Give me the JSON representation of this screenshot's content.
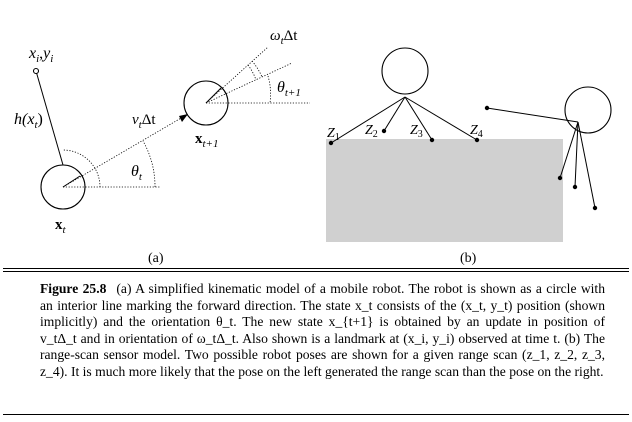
{
  "panel_a": {
    "landmark_label": "x",
    "landmark_sep": ",",
    "landmark_label2": "y",
    "landmark_sub": "i",
    "h_label": "h(x",
    "h_sub": "t",
    "h_close": ")",
    "x_t": "x",
    "x_t_sub": "t",
    "v_label": "v",
    "v_sub": "t",
    "v_delta": "Δt",
    "theta": "θ",
    "theta_sub": "t",
    "omega": "ω",
    "omega_sub": "t",
    "omega_delta": "Δt",
    "theta_next_sub": "t+1",
    "x_next_sub": "t+1",
    "caption": "(a)"
  },
  "panel_b": {
    "z_labels": [
      "Z",
      "Z",
      "Z",
      "Z"
    ],
    "z_subs": [
      "1",
      "2",
      "3",
      "4"
    ],
    "caption": "(b)"
  },
  "caption": {
    "label": "Figure 25.8",
    "text": "(a) A simplified kinematic model of a mobile robot. The robot is shown as a circle with an interior line marking the forward direction. The state x_t consists of the (x_t, y_t) position (shown implicitly) and the orientation θ_t. The new state x_{t+1} is obtained by an update in position of v_tΔ_t and in orientation of ω_tΔ_t. Also shown is a landmark at (x_i, y_i) observed at time t. (b) The range-scan sensor model. Two possible robot poses are shown for a given range scan (z_1, z_2, z_3, z_4). It is much more likely that the pose on the left generated the range scan than the pose on the right."
  }
}
